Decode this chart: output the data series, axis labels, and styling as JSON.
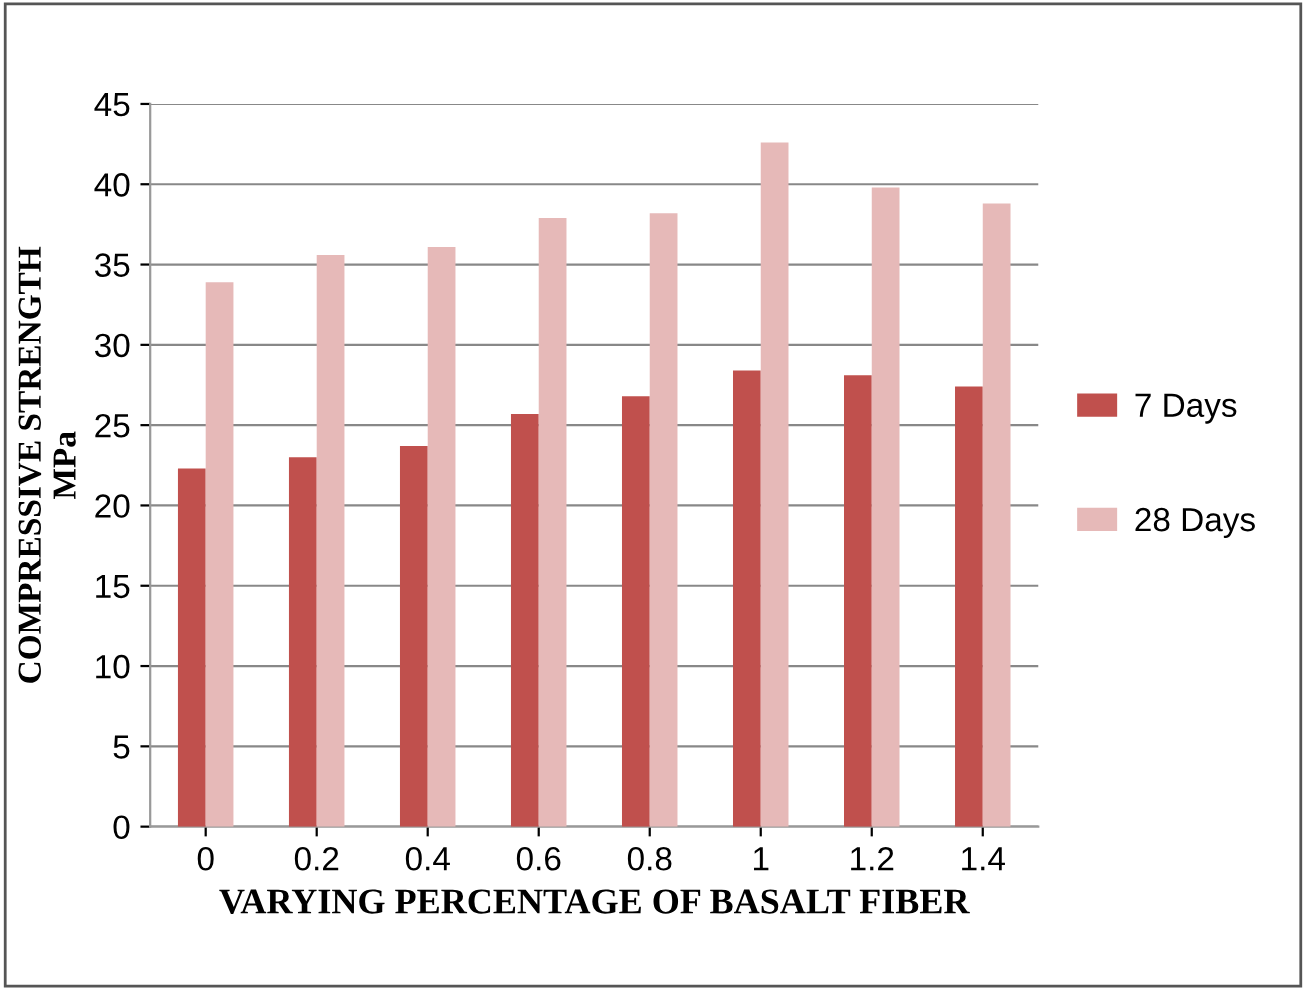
{
  "chart_data": {
    "type": "bar",
    "xlabel": "VARYING PERCENTAGE OF BASALT FIBER",
    "ylabel": "COMPRESSIVE STRENGTH\nMPa",
    "categories": [
      "0",
      "0.2",
      "0.4",
      "0.6",
      "0.8",
      "1",
      "1.2",
      "1.4"
    ],
    "series": [
      {
        "name": "7 Days",
        "color": "#c0504d",
        "values": [
          22.3,
          23.0,
          23.7,
          25.7,
          26.8,
          28.4,
          28.1,
          27.4
        ]
      },
      {
        "name": "28 Days",
        "color": "#e6b9b8",
        "values": [
          33.9,
          35.6,
          36.1,
          37.9,
          38.2,
          42.6,
          39.8,
          38.8
        ]
      }
    ],
    "ylim": [
      0,
      45
    ],
    "yticks": [
      0,
      5,
      10,
      15,
      20,
      25,
      30,
      35,
      40,
      45
    ],
    "grid": "y",
    "legend": "right"
  }
}
